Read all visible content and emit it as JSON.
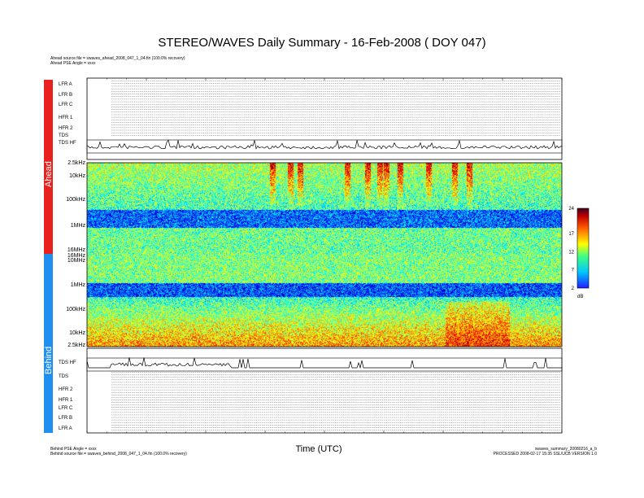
{
  "title": "STEREO/WAVES Daily Summary - 16-Feb-2008 ( DOY 047)",
  "ahead_source": "Ahead source file = swaves_ahead_2008_047_1_04.fin (100.0% recovery)",
  "ahead_angle": "Ahead PSE Angle = xxxx",
  "behind_angle": "Behind PSE Angle = xxxx",
  "behind_source": "Behind source file = swaves_behind_2008_047_1_04.fin (100.0% recovery)",
  "xlabel": "Time (UTC)",
  "footer_file": "swaves_summary_20080216_a_b",
  "footer_info": "PROCESSED 2008-02-17 15:35 SSL/UCB VERSION 1.0",
  "side": {
    "ahead": "Ahead",
    "behind": "Behind"
  },
  "ahead_rows": [
    "LFR A",
    "LFR B",
    "LFR C",
    "HFR 1",
    "HFR 2",
    "TDS",
    "TDS HF"
  ],
  "behind_rows": [
    "TDS HF",
    "TDS",
    "HFR 2",
    "HFR 1",
    "LFR C",
    "LFR B",
    "LFR A"
  ],
  "freq_labels_top": [
    "2.5kHz",
    "10kHz",
    "100kHz",
    "1MHz",
    "16MHz"
  ],
  "freq_labels_bottom": [
    "16MHz",
    "10MHz",
    "1MHz",
    "100kHz",
    "10kHz",
    "2.5kHz"
  ],
  "colorbar": {
    "ticks": [
      "24",
      "17",
      "12",
      "7",
      "2"
    ],
    "unit": "dB"
  },
  "chart_data": {
    "type": "heatmap",
    "title": "STEREO/WAVES Daily Summary - 16-Feb-2008 ( DOY 047)",
    "xlabel": "Time (UTC)",
    "panels": [
      {
        "name": "Ahead",
        "ylabels": [
          "2.5kHz",
          "10kHz",
          "100kHz",
          "1MHz",
          "16MHz"
        ]
      },
      {
        "name": "Behind",
        "ylabels": [
          "16MHz",
          "10MHz",
          "1MHz",
          "100kHz",
          "10kHz",
          "2.5kHz"
        ]
      }
    ],
    "colorbar": {
      "min": 2,
      "max": 24,
      "ticks": [
        2,
        7,
        12,
        17,
        24
      ],
      "unit": "dB"
    }
  }
}
